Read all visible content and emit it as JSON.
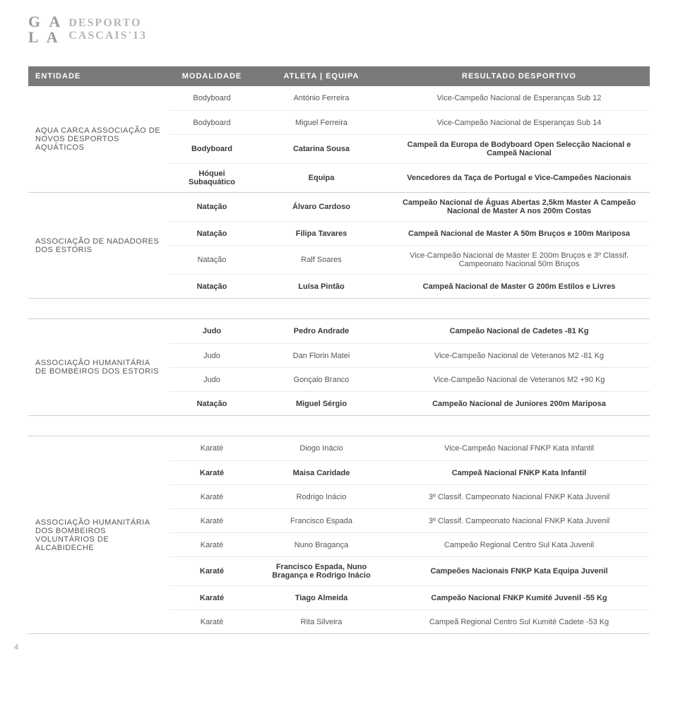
{
  "logo": {
    "ga": "G A",
    "la": "L A",
    "desporto": "DESPORTO",
    "cascais": "CASCAIS'13"
  },
  "header": {
    "entidade": "ENTIDADE",
    "modalidade": "MODALIDADE",
    "atleta": "ATLETA | EQUIPA",
    "resultado": "RESULTADO DESPORTIVO"
  },
  "sections": [
    {
      "entity": "AQUA CARCA ASSOCIAÇÃO DE NOVOS DESPORTOS AQUÁTICOS",
      "rows": [
        {
          "mod": "Bodyboard",
          "atl": "António Ferreira",
          "res": "Vice-Campeão Nacional de Esperanças Sub 12",
          "light": true
        },
        {
          "mod": "Bodyboard",
          "atl": "Miguel Ferreira",
          "res": "Vice-Campeão Nacional de Esperanças Sub 14",
          "light": true
        },
        {
          "mod": "Bodyboard",
          "atl": "Catarina Sousa",
          "res": "Campeã da Europa de Bodyboard Open Selecção Nacional e Campeã Nacional",
          "bold": true
        },
        {
          "mod": "Hóquei Subaquático",
          "atl": "Equipa",
          "res": "Vencedores da Taça de Portugal e Vice-Campeões Nacionais",
          "bold": true
        }
      ]
    },
    {
      "entity": "ASSOCIAÇÃO DE NADADORES DOS ESTORIS",
      "rows": [
        {
          "mod": "Natação",
          "atl": "Álvaro Cardoso",
          "res": "Campeão Nacional de Águas Abertas 2,5km Master A Campeão Nacional de Master A nos 200m Costas",
          "bold": true
        },
        {
          "mod": "Natação",
          "atl": "Filipa Tavares",
          "res": "Campeã Nacional de Master A 50m Bruços e 100m Mariposa",
          "bold": true
        },
        {
          "mod": "Natação",
          "atl": "Ralf Soares",
          "res": "Vice-Campeão Nacional de Master E 200m Bruços e 3º Classif. Campeonato Nacional 50m Bruços",
          "light": true
        },
        {
          "mod": "Natação",
          "atl": "Luísa Pintão",
          "res": "Campeã Nacional de Master G 200m Estilos e Livres",
          "bold": true
        }
      ]
    },
    {
      "entity": "ASSOCIAÇÃO HUMANITÁRIA DE BOMBEIROS DOS ESTORIS",
      "gap": true,
      "rows": [
        {
          "mod": "Judo",
          "atl": "Pedro Andrade",
          "res": "Campeão Nacional de Cadetes -81 Kg",
          "bold": true
        },
        {
          "mod": "Judo",
          "atl": "Dan Florin Matei",
          "res": "Vice-Campeão Nacional de Veteranos M2 -81 Kg",
          "light": true
        },
        {
          "mod": "Judo",
          "atl": "Gonçalo Branco",
          "res": "Vice-Campeão Nacional de Veteranos M2 +90 Kg",
          "light": true
        },
        {
          "mod": "Natação",
          "atl": "Miguel Sérgio",
          "res": "Campeão Nacional de Juniores 200m Mariposa",
          "bold": true
        }
      ]
    },
    {
      "entity": "ASSOCIAÇÃO HUMANITÁRIA DOS BOMBEIROS VOLUNTÁRIOS DE ALCABIDECHE",
      "gap": true,
      "rows": [
        {
          "mod": "Karaté",
          "atl": "Diogo Inácio",
          "res": "Vice-Campeão Nacional FNKP Kata Infantil",
          "light": true
        },
        {
          "mod": "Karaté",
          "atl": "Maisa Caridade",
          "res": "Campeã Nacional FNKP Kata Infantil",
          "bold": true
        },
        {
          "mod": "Karaté",
          "atl": "Rodrigo Inácio",
          "res": "3º Classif. Campeonato Nacional FNKP Kata Juvenil",
          "light": true
        },
        {
          "mod": "Karaté",
          "atl": "Francisco Espada",
          "res": "3º Classif. Campeonato Nacional FNKP Kata Juvenil",
          "light": true
        },
        {
          "mod": "Karaté",
          "atl": "Nuno Bragança",
          "res": "Campeão Regional Centro Sul Kata Juvenil",
          "light": true
        },
        {
          "mod": "Karaté",
          "atl": "Francisco Espada, Nuno Bragança e Rodrigo Inácio",
          "res": "Campeões Nacionais FNKP Kata Equipa Juvenil",
          "bold": true
        },
        {
          "mod": "Karaté",
          "atl": "Tiago Almeida",
          "res": "Campeão Nacional FNKP Kumité Juvenil -55 Kg",
          "bold": true
        },
        {
          "mod": "Karaté",
          "atl": "Rita Silveira",
          "res": "Campeã Regional Centro Sul Kumité Cadete -53 Kg",
          "light": true
        }
      ]
    }
  ],
  "pagenum": "4"
}
